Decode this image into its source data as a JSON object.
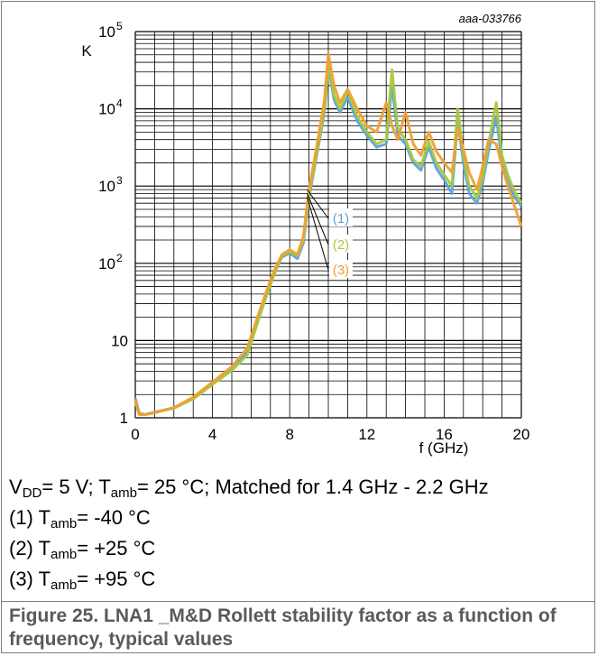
{
  "chart_data": {
    "type": "line",
    "figure_id": "aaa-033766",
    "xlabel": "f (GHz)",
    "ylabel": "K",
    "xlim": [
      0,
      20
    ],
    "ylim": [
      1,
      100000
    ],
    "y_scale": "log",
    "grid": true,
    "x_ticks": [
      "0",
      "4",
      "8",
      "12",
      "16",
      "20"
    ],
    "y_ticks": [
      {
        "value": 1,
        "label": "1"
      },
      {
        "value": 10,
        "label": "10"
      },
      {
        "value": 100,
        "label": "10",
        "exp": "2"
      },
      {
        "value": 1000,
        "label": "10",
        "exp": "3"
      },
      {
        "value": 10000,
        "label": "10",
        "exp": "4"
      },
      {
        "value": 100000,
        "label": "10",
        "exp": "5"
      }
    ],
    "series": [
      {
        "name": "(1)",
        "color": "#5ba3dc",
        "points": [
          [
            0,
            1.8
          ],
          [
            0.2,
            1.15
          ],
          [
            0.5,
            1.1
          ],
          [
            1,
            1.18
          ],
          [
            2,
            1.35
          ],
          [
            3,
            1.8
          ],
          [
            4,
            2.8
          ],
          [
            5,
            4.3
          ],
          [
            5.8,
            7
          ],
          [
            6.3,
            17
          ],
          [
            6.8,
            40
          ],
          [
            7.2,
            75
          ],
          [
            7.6,
            120
          ],
          [
            8,
            135
          ],
          [
            8.4,
            115
          ],
          [
            8.7,
            180
          ],
          [
            9,
            700
          ],
          [
            9.4,
            2500
          ],
          [
            9.8,
            9000
          ],
          [
            10,
            35000
          ],
          [
            10.3,
            13000
          ],
          [
            10.6,
            9000
          ],
          [
            11,
            14000
          ],
          [
            11.5,
            7000
          ],
          [
            12,
            4500
          ],
          [
            12.5,
            3200
          ],
          [
            13,
            3500
          ],
          [
            13.3,
            20000
          ],
          [
            13.6,
            4500
          ],
          [
            14,
            3500
          ],
          [
            14.4,
            2000
          ],
          [
            14.8,
            1600
          ],
          [
            15.2,
            3200
          ],
          [
            15.6,
            1700
          ],
          [
            16,
            1200
          ],
          [
            16.4,
            800
          ],
          [
            16.7,
            7000
          ],
          [
            17,
            2000
          ],
          [
            17.3,
            800
          ],
          [
            17.7,
            600
          ],
          [
            18,
            1100
          ],
          [
            18.3,
            2800
          ],
          [
            18.7,
            8000
          ],
          [
            19,
            2000
          ],
          [
            19.3,
            1200
          ],
          [
            19.6,
            750
          ],
          [
            20,
            550
          ]
        ]
      },
      {
        "name": "(2)",
        "color": "#a8c83c",
        "points": [
          [
            0,
            1.6
          ],
          [
            0.2,
            1.12
          ],
          [
            0.5,
            1.1
          ],
          [
            1,
            1.17
          ],
          [
            2,
            1.33
          ],
          [
            3,
            1.75
          ],
          [
            4,
            2.7
          ],
          [
            5,
            4.1
          ],
          [
            5.8,
            6.5
          ],
          [
            6.3,
            16
          ],
          [
            6.8,
            38
          ],
          [
            7.2,
            72
          ],
          [
            7.6,
            125
          ],
          [
            8,
            140
          ],
          [
            8.4,
            125
          ],
          [
            8.7,
            200
          ],
          [
            9,
            750
          ],
          [
            9.4,
            2700
          ],
          [
            9.8,
            10000
          ],
          [
            10,
            38000
          ],
          [
            10.3,
            15000
          ],
          [
            10.6,
            10000
          ],
          [
            11,
            17000
          ],
          [
            11.5,
            8000
          ],
          [
            12,
            5000
          ],
          [
            12.5,
            3500
          ],
          [
            13,
            4000
          ],
          [
            13.3,
            32000
          ],
          [
            13.6,
            5500
          ],
          [
            14,
            4000
          ],
          [
            14.4,
            2200
          ],
          [
            14.8,
            1800
          ],
          [
            15.2,
            3800
          ],
          [
            15.6,
            2000
          ],
          [
            16,
            1400
          ],
          [
            16.4,
            1000
          ],
          [
            16.7,
            10000
          ],
          [
            17,
            2500
          ],
          [
            17.3,
            1000
          ],
          [
            17.7,
            700
          ],
          [
            18,
            1300
          ],
          [
            18.3,
            3500
          ],
          [
            18.7,
            12000
          ],
          [
            19,
            2500
          ],
          [
            19.3,
            1400
          ],
          [
            19.6,
            900
          ],
          [
            20,
            600
          ]
        ]
      },
      {
        "name": "(3)",
        "color": "#f0a030",
        "points": [
          [
            0,
            1.7
          ],
          [
            0.2,
            1.1
          ],
          [
            0.5,
            1.1
          ],
          [
            1,
            1.16
          ],
          [
            2,
            1.35
          ],
          [
            3,
            1.85
          ],
          [
            4,
            2.9
          ],
          [
            5,
            4.6
          ],
          [
            5.8,
            8
          ],
          [
            6.3,
            19
          ],
          [
            6.8,
            44
          ],
          [
            7.2,
            80
          ],
          [
            7.6,
            130
          ],
          [
            8,
            150
          ],
          [
            8.4,
            130
          ],
          [
            8.7,
            220
          ],
          [
            9,
            900
          ],
          [
            9.4,
            3300
          ],
          [
            9.8,
            13000
          ],
          [
            10,
            52000
          ],
          [
            10.3,
            20000
          ],
          [
            10.6,
            12000
          ],
          [
            11,
            18000
          ],
          [
            11.5,
            10000
          ],
          [
            12,
            6000
          ],
          [
            12.5,
            5000
          ],
          [
            13,
            12000
          ],
          [
            13.3,
            6000
          ],
          [
            13.6,
            4000
          ],
          [
            14,
            9000
          ],
          [
            14.4,
            3500
          ],
          [
            14.8,
            2500
          ],
          [
            15.2,
            5000
          ],
          [
            15.6,
            2800
          ],
          [
            16,
            2000
          ],
          [
            16.4,
            1500
          ],
          [
            16.7,
            5500
          ],
          [
            17,
            3000
          ],
          [
            17.3,
            1500
          ],
          [
            17.7,
            900
          ],
          [
            18,
            1800
          ],
          [
            18.3,
            4000
          ],
          [
            18.7,
            3500
          ],
          [
            19,
            1800
          ],
          [
            19.3,
            1000
          ],
          [
            19.6,
            600
          ],
          [
            20,
            300
          ]
        ]
      }
    ]
  },
  "caption": {
    "line1": {
      "a": "V",
      "a_sub": "DD",
      "b": "= 5 V; T",
      "b_sub": "amb",
      "c": "= 25 °C; Matched for 1.4 GHz - 2.2 GHz"
    },
    "items": [
      {
        "prefix": "(1) T",
        "sub": "amb",
        "suffix": "= -40 °C"
      },
      {
        "prefix": "(2) T",
        "sub": "amb",
        "suffix": "= +25 °C"
      },
      {
        "prefix": "(3) T",
        "sub": "amb",
        "suffix": "= +95 °C"
      }
    ]
  },
  "figure_title": "Figure 25.  LNA1 _M&D Rollett stability factor as a function of frequency, typical values"
}
